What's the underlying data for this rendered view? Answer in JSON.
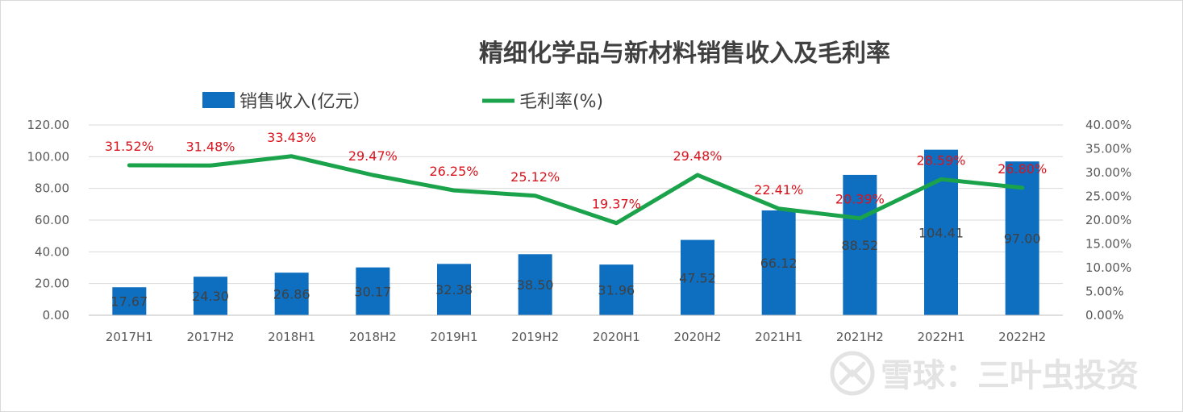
{
  "chart_data": {
    "type": "bar",
    "title": "精细化学品与新材料销售收入及毛利率",
    "categories": [
      "2017H1",
      "2017H2",
      "2018H1",
      "2018H2",
      "2019H1",
      "2019H2",
      "2020H1",
      "2020H2",
      "2021H1",
      "2021H2",
      "2022H1",
      "2022H2"
    ],
    "series": [
      {
        "name": "销售收入(亿元）",
        "type": "bar",
        "axis": "left",
        "color": "#0e6fc1",
        "values": [
          17.67,
          24.3,
          26.86,
          30.17,
          32.38,
          38.5,
          31.96,
          47.52,
          66.12,
          88.52,
          104.41,
          97.0
        ],
        "labels": [
          "17.67",
          "24.30",
          "26.86",
          "30.17",
          "32.38",
          "38.50",
          "31.96",
          "47.52",
          "66.12",
          "88.52",
          "104.41",
          "97.00"
        ]
      },
      {
        "name": "毛利率(%)",
        "type": "line",
        "axis": "right",
        "color": "#1aa34a",
        "values": [
          31.52,
          31.48,
          33.43,
          29.47,
          26.25,
          25.12,
          19.37,
          29.48,
          22.41,
          20.39,
          28.59,
          26.8
        ],
        "labels": [
          "31.52%",
          "31.48%",
          "33.43%",
          "29.47%",
          "26.25%",
          "25.12%",
          "19.37%",
          "29.48%",
          "22.41%",
          "20.39%",
          "28.59%",
          "26.80%"
        ]
      }
    ],
    "y_left": {
      "range": [
        0,
        120
      ],
      "ticks": [
        "0.00",
        "20.00",
        "40.00",
        "60.00",
        "80.00",
        "100.00",
        "120.00"
      ]
    },
    "y_right": {
      "range": [
        0,
        40
      ],
      "ticks": [
        "0.00%",
        "5.00%",
        "10.00%",
        "15.00%",
        "20.00%",
        "25.00%",
        "30.00%",
        "35.00%",
        "40.00%"
      ]
    },
    "grid": true,
    "legend_position": "top"
  },
  "watermark": "雪球：三叶虫投资",
  "colors": {
    "bar": "#0e6fc1",
    "line": "#1aa34a",
    "rate_label": "#d9141e",
    "grid": "#d9d9d9"
  }
}
